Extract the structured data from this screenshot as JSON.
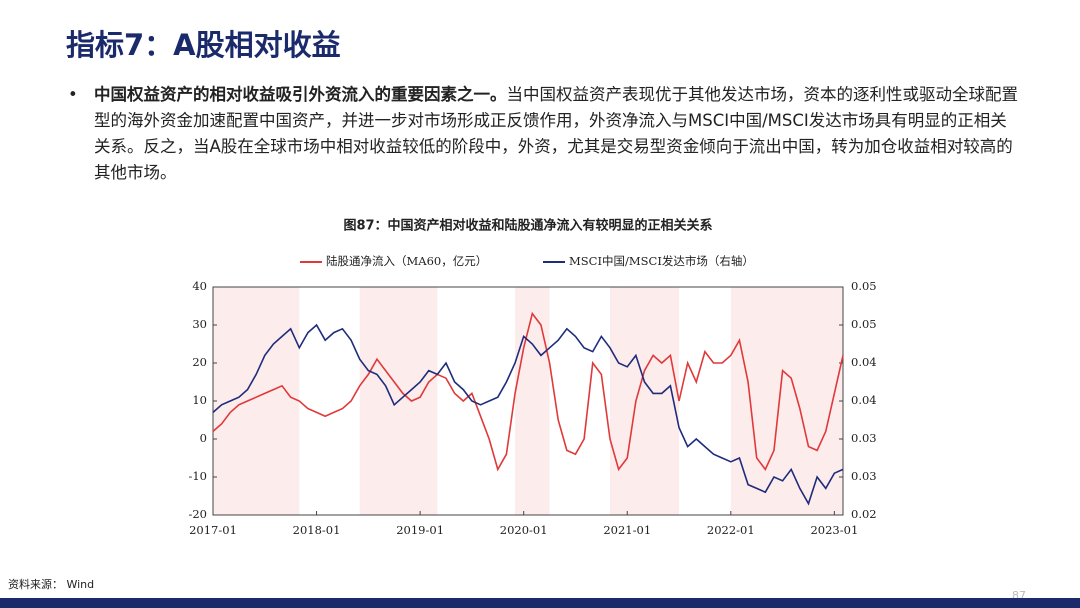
{
  "title": "指标7：A股相对收益",
  "bullet": {
    "bold": "中国权益资产的相对收益吸引外资流入的重要因素之一。",
    "text": "当中国权益资产表现优于其他发达市场，资本的逐利性或驱动全球配置型的海外资金加速配置中国资产，并进一步对市场形成正反馈作用，外资净流入与MSCI中国/MSCI发达市场具有明显的正相关关系。反之，当A股在全球市场中相对收益较低的阶段中，外资，尤其是交易型资金倾向于流出中国，转为加仓收益相对较高的其他市场。"
  },
  "source": "资料来源： Wind",
  "page_number": "87",
  "chart_data": {
    "type": "line",
    "title": "图87：中国资产相对收益和陆股通净流入有较明显的正相关关系",
    "x": [
      "2017-01",
      "2017-02",
      "2017-03",
      "2017-04",
      "2017-05",
      "2017-06",
      "2017-07",
      "2017-08",
      "2017-09",
      "2017-10",
      "2017-11",
      "2017-12",
      "2018-01",
      "2018-02",
      "2018-03",
      "2018-04",
      "2018-05",
      "2018-06",
      "2018-07",
      "2018-08",
      "2018-09",
      "2018-10",
      "2018-11",
      "2018-12",
      "2019-01",
      "2019-02",
      "2019-03",
      "2019-04",
      "2019-05",
      "2019-06",
      "2019-07",
      "2019-08",
      "2019-09",
      "2019-10",
      "2019-11",
      "2019-12",
      "2020-01",
      "2020-02",
      "2020-03",
      "2020-04",
      "2020-05",
      "2020-06",
      "2020-07",
      "2020-08",
      "2020-09",
      "2020-10",
      "2020-11",
      "2020-12",
      "2021-01",
      "2021-02",
      "2021-03",
      "2021-04",
      "2021-05",
      "2021-06",
      "2021-07",
      "2021-08",
      "2021-09",
      "2021-10",
      "2021-11",
      "2021-12",
      "2022-01",
      "2022-02",
      "2022-03",
      "2022-04",
      "2022-05",
      "2022-06",
      "2022-07",
      "2022-08",
      "2022-09",
      "2022-10",
      "2022-11",
      "2022-12",
      "2023-01",
      "2023-02"
    ],
    "series": [
      {
        "name": "陆股通净流入（MA60，亿元）",
        "color": "#e0393a",
        "axis": "y",
        "values": [
          2,
          4,
          7,
          9,
          10,
          11,
          12,
          13,
          14,
          11,
          10,
          8,
          7,
          6,
          7,
          8,
          10,
          14,
          17,
          21,
          18,
          15,
          12,
          10,
          11,
          15,
          17,
          16,
          12,
          10,
          12,
          6,
          0,
          -8,
          -4,
          12,
          24,
          33,
          30,
          20,
          5,
          -3,
          -4,
          0,
          20,
          17,
          0,
          -8,
          -5,
          10,
          18,
          22,
          20,
          22,
          10,
          20,
          15,
          23,
          20,
          20,
          22,
          26,
          15,
          -5,
          -8,
          -3,
          18,
          16,
          8,
          -2,
          -3,
          2,
          12,
          22
        ]
      },
      {
        "name": "MSCI中国/MSCI发达市场（右轴）",
        "color": "#1f2c7c",
        "axis": "y2",
        "values": [
          0.0335,
          0.0345,
          0.035,
          0.0355,
          0.0365,
          0.0385,
          0.041,
          0.0425,
          0.0435,
          0.0445,
          0.042,
          0.044,
          0.045,
          0.043,
          0.044,
          0.0445,
          0.043,
          0.0405,
          0.039,
          0.0385,
          0.037,
          0.0345,
          0.0355,
          0.0365,
          0.0375,
          0.039,
          0.0385,
          0.04,
          0.0375,
          0.0365,
          0.035,
          0.0345,
          0.035,
          0.0355,
          0.0375,
          0.04,
          0.0435,
          0.0425,
          0.041,
          0.042,
          0.043,
          0.0445,
          0.0435,
          0.042,
          0.0415,
          0.0435,
          0.042,
          0.04,
          0.0395,
          0.041,
          0.0375,
          0.036,
          0.036,
          0.037,
          0.0315,
          0.029,
          0.03,
          0.029,
          0.028,
          0.0275,
          0.027,
          0.0275,
          0.024,
          0.0235,
          0.023,
          0.025,
          0.0245,
          0.026,
          0.0235,
          0.0215,
          0.025,
          0.0235,
          0.0255,
          0.026
        ]
      }
    ],
    "xlim": [
      "2017-01",
      "2023-02"
    ],
    "xticks": [
      "2017-01",
      "2018-01",
      "2019-01",
      "2020-01",
      "2021-01",
      "2022-01",
      "2023-01"
    ],
    "ylim": [
      -20,
      40
    ],
    "yticks": [
      -20,
      -10,
      0,
      10,
      20,
      30,
      40
    ],
    "y2lim": [
      0.02,
      0.05
    ],
    "y2ticks": [
      0.02,
      {
        "value": 0.025,
        "label": "0.03"
      },
      0.03,
      {
        "value": 0.035,
        "label": "0.04"
      },
      0.04,
      {
        "value": 0.045,
        "label": "0.05"
      },
      0.05
    ],
    "shaded_periods": [
      {
        "start": "2017-01",
        "end": "2017-11",
        "color": "#fdecec"
      },
      {
        "start": "2018-06",
        "end": "2019-03",
        "color": "#fdecec"
      },
      {
        "start": "2019-12",
        "end": "2020-04",
        "color": "#fdecec"
      },
      {
        "start": "2020-11",
        "end": "2021-07",
        "color": "#fdecec"
      },
      {
        "start": "2022-01",
        "end": "2023-02",
        "color": "#fdecec"
      }
    ]
  }
}
